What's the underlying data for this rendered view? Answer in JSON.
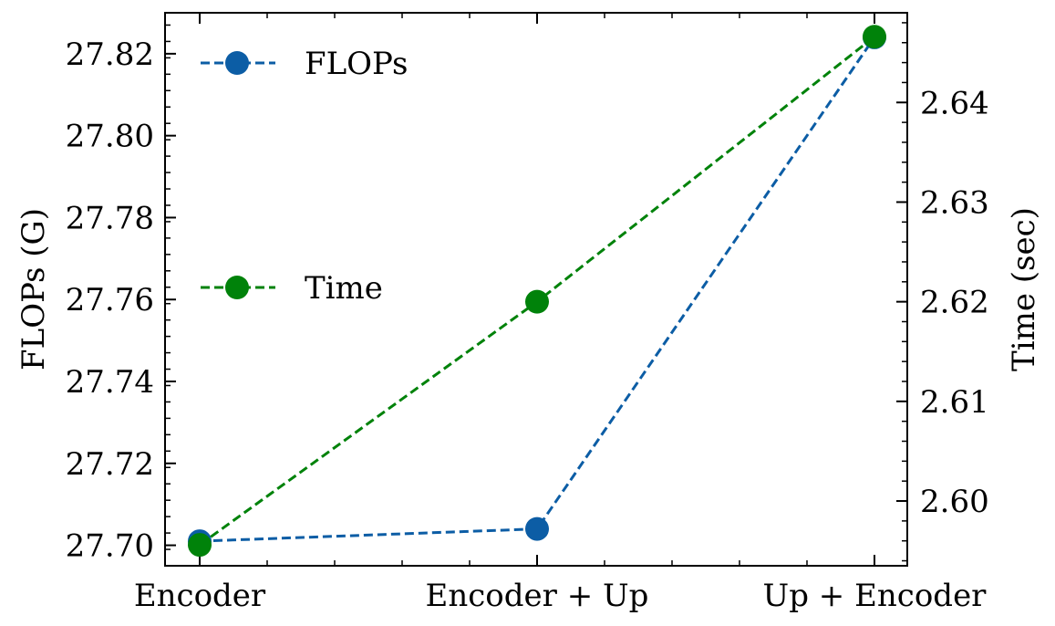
{
  "chart_data": {
    "type": "line",
    "categories": [
      "Encoder",
      "Encoder + Up",
      "Up + Encoder"
    ],
    "series": [
      {
        "name": "FLOPs",
        "axis": "left",
        "values": [
          27.701,
          27.704,
          27.824
        ],
        "color": "#0C5DA5",
        "linestyle": "dashed",
        "marker": "circle"
      },
      {
        "name": "Time",
        "axis": "right",
        "values": [
          2.5956,
          2.62,
          2.6466
        ],
        "color": "#00820A",
        "linestyle": "dashed",
        "marker": "circle"
      }
    ],
    "ylabel": "FLOPs (G)",
    "y2label": "Time (sec)",
    "xlabel": "",
    "title": "",
    "ylim": [
      27.695,
      27.83
    ],
    "y2lim": [
      2.5935,
      2.649
    ],
    "yticks": [
      27.7,
      27.72,
      27.74,
      27.76,
      27.78,
      27.8,
      27.82
    ],
    "ytick_labels": [
      "27.70",
      "27.72",
      "27.74",
      "27.76",
      "27.78",
      "27.80",
      "27.82"
    ],
    "y2ticks": [
      2.6,
      2.61,
      2.62,
      2.63,
      2.64
    ],
    "y2tick_labels": [
      "2.60",
      "2.61",
      "2.62",
      "2.63",
      "2.64"
    ],
    "grid": false,
    "legend_position": "upper-left, stacked vertically"
  }
}
